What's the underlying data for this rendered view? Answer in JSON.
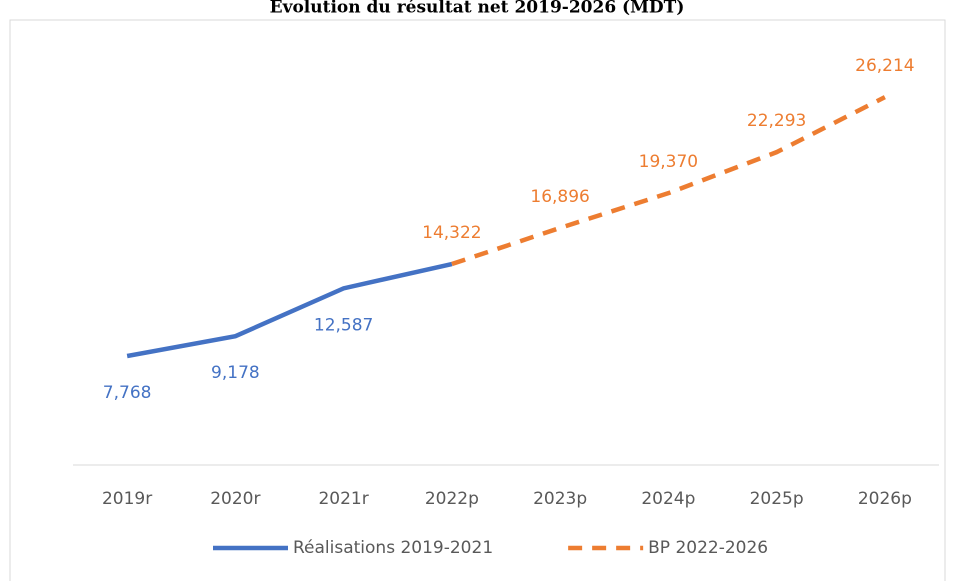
{
  "chart_data": {
    "type": "line",
    "title": "Évolution du résultat net 2019-2026 (MDT)",
    "categories": [
      "2019r",
      "2020r",
      "2021r",
      "2022p",
      "2023p",
      "2024p",
      "2025p",
      "2026p"
    ],
    "series": [
      {
        "name": "Réalisations 2019-2021",
        "color": "#4472c4",
        "dashed": false,
        "label_position": "below",
        "values": [
          7768,
          9178,
          12587,
          14322,
          null,
          null,
          null,
          null
        ],
        "value_labels": [
          "7,768",
          "9,178",
          "12,587",
          null,
          null,
          null,
          null,
          null
        ]
      },
      {
        "name": "BP 2022-2026",
        "color": "#ed7d31",
        "dashed": true,
        "label_position": "above",
        "values": [
          null,
          null,
          null,
          14322,
          16896,
          19370,
          22293,
          26214
        ],
        "value_labels": [
          null,
          null,
          null,
          "14,322",
          "16,896",
          "19,370",
          "22,293",
          "26,214"
        ]
      }
    ],
    "ylim": [
      0,
      30000
    ],
    "legend": "bottom"
  }
}
